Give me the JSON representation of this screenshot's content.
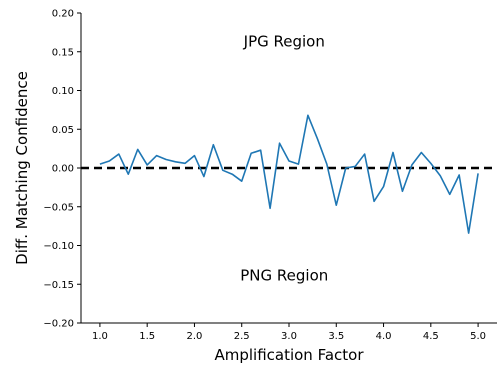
{
  "chart_data": {
    "type": "line",
    "xlabel": "Amplification Factor",
    "ylabel": "Diff. Matching Confidence",
    "xlim": [
      0.8,
      5.2
    ],
    "ylim": [
      -0.2,
      0.2
    ],
    "x_ticks": [
      "1.0",
      "1.5",
      "2.0",
      "2.5",
      "3.0",
      "3.5",
      "4.0",
      "4.5",
      "5.0"
    ],
    "y_ticks": [
      "0.20",
      "0.15",
      "0.10",
      "0.05",
      "0.00",
      "−0.05",
      "−0.10",
      "−0.15",
      "−0.20"
    ],
    "grid": false,
    "annotations": [
      {
        "text": "JPG Region",
        "x": 2.95,
        "y": 0.157
      },
      {
        "text": "PNG Region",
        "x": 2.95,
        "y": -0.145
      }
    ],
    "reference_line": {
      "y": 0.0,
      "style": "dashed",
      "color": "#000000"
    },
    "series": [
      {
        "color": "#1f77b4",
        "x": [
          1.0,
          1.1,
          1.2,
          1.3,
          1.4,
          1.5,
          1.6,
          1.7,
          1.8,
          1.9,
          2.0,
          2.1,
          2.2,
          2.3,
          2.4,
          2.5,
          2.6,
          2.7,
          2.8,
          2.9,
          3.0,
          3.1,
          3.2,
          3.3,
          3.4,
          3.5,
          3.6,
          3.7,
          3.8,
          3.9,
          4.0,
          4.1,
          4.2,
          4.3,
          4.4,
          4.5,
          4.6,
          4.7,
          4.8,
          4.9,
          5.0
        ],
        "y": [
          0.005,
          0.009,
          0.018,
          -0.008,
          0.024,
          0.004,
          0.016,
          0.011,
          0.008,
          0.006,
          0.016,
          -0.011,
          0.03,
          -0.003,
          -0.008,
          -0.017,
          0.019,
          0.023,
          -0.052,
          0.032,
          0.009,
          0.005,
          0.068,
          0.038,
          0.005,
          -0.048,
          0.0,
          0.002,
          0.018,
          -0.043,
          -0.024,
          0.02,
          -0.03,
          0.004,
          0.02,
          0.006,
          -0.01,
          -0.034,
          -0.009,
          -0.084,
          -0.007
        ]
      }
    ]
  }
}
